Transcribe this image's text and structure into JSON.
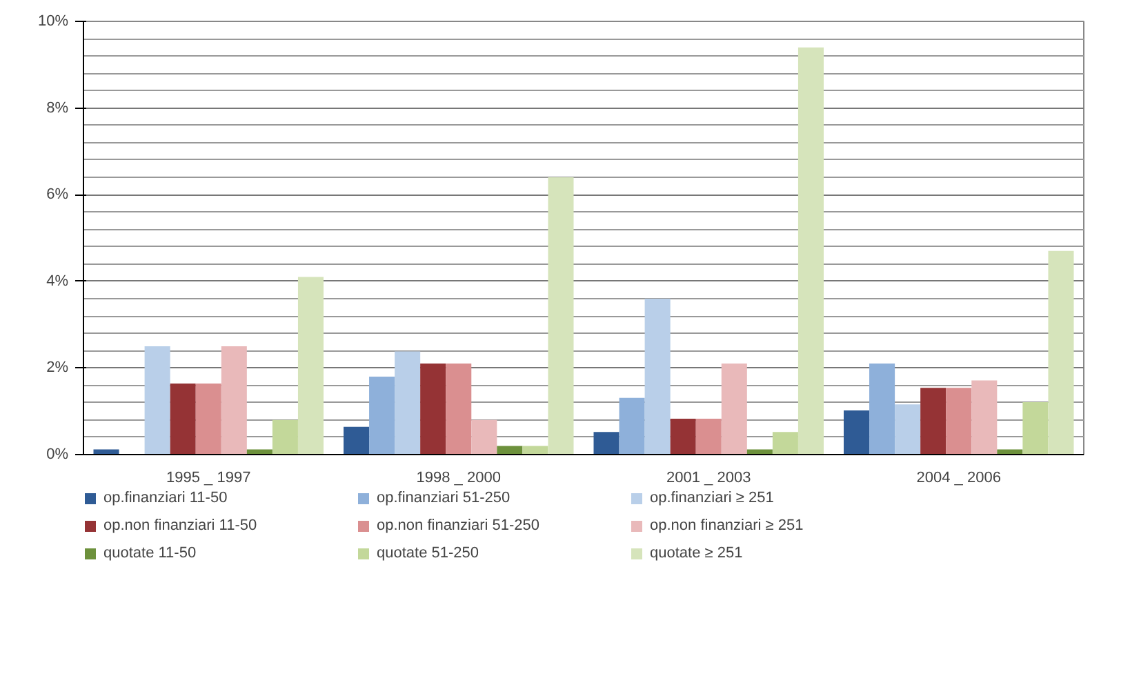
{
  "chart_data": {
    "type": "bar",
    "categories": [
      "1995 _ 1997",
      "1998 _ 2000",
      "2001 _ 2003",
      "2004 _ 2006"
    ],
    "series": [
      {
        "name": "op.finanziari 11-50",
        "color": "#2f5b95",
        "values": [
          0.12,
          0.64,
          0.52,
          1.02
        ]
      },
      {
        "name": "op.finanziari 51-250",
        "color": "#8eb0da",
        "values": [
          0,
          1.8,
          1.31,
          2.1
        ]
      },
      {
        "name": "op.finanziari ≥ 251",
        "color": "#b9cfe9",
        "values": [
          2.5,
          2.38,
          3.6,
          1.16
        ]
      },
      {
        "name": "op.non finanziari 11-50",
        "color": "#953335",
        "values": [
          1.64,
          2.1,
          0.83,
          1.54
        ]
      },
      {
        "name": "op.non finanziari 51-250",
        "color": "#da8f90",
        "values": [
          1.64,
          2.1,
          0.83,
          1.54
        ]
      },
      {
        "name": "op.non finanziari ≥ 251",
        "color": "#e9b9ba",
        "values": [
          2.5,
          0.8,
          2.1,
          1.71
        ]
      },
      {
        "name": "quotate 11-50",
        "color": "#6d913c",
        "values": [
          0.12,
          0.2,
          0.12,
          0.12
        ]
      },
      {
        "name": "quotate 51-250",
        "color": "#c3d89a",
        "values": [
          0.8,
          0.2,
          0.52,
          1.21
        ]
      },
      {
        "name": "quotate ≥ 251",
        "color": "#d6e4bb",
        "values": [
          4.1,
          6.4,
          9.4,
          4.7
        ]
      }
    ],
    "ylim": [
      0,
      10
    ],
    "yticks": [
      {
        "value": 0,
        "label": "0%"
      },
      {
        "value": 2,
        "label": "2%"
      },
      {
        "value": 4,
        "label": "4%"
      },
      {
        "value": 6,
        "label": "6%"
      },
      {
        "value": 8,
        "label": "8%"
      },
      {
        "value": 10,
        "label": "10%"
      }
    ],
    "grid": true,
    "legend": "bottom"
  }
}
